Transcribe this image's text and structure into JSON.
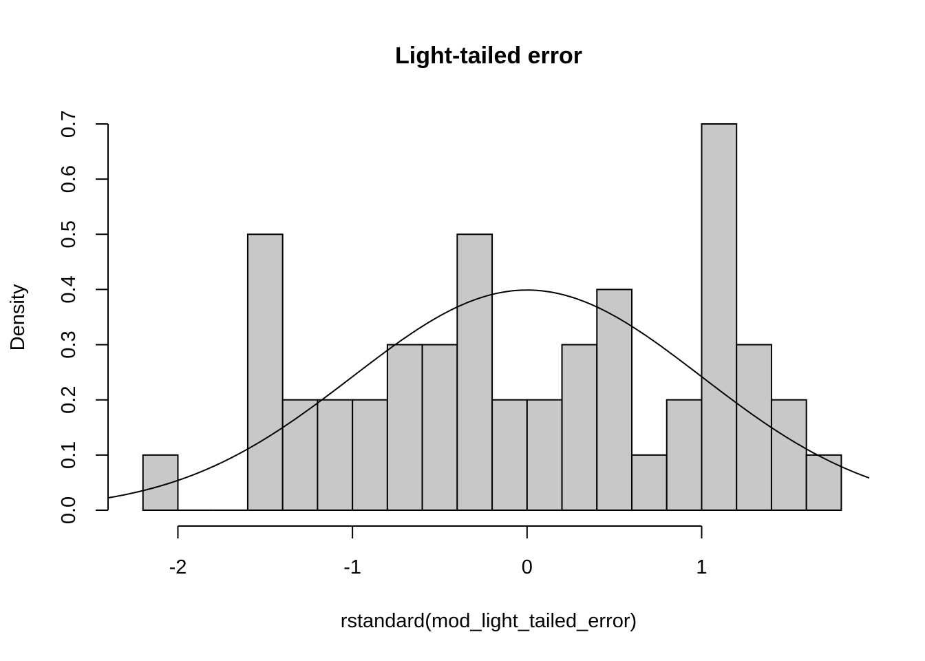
{
  "chart_data": {
    "type": "bar",
    "title": "Light-tailed error",
    "xlabel": "rstandard(mod_light_tailed_error)",
    "ylabel": "Density",
    "bins": [
      {
        "x0": -2.2,
        "x1": -2.0,
        "density": 0.1
      },
      {
        "x0": -2.0,
        "x1": -1.8,
        "density": 0.0
      },
      {
        "x0": -1.8,
        "x1": -1.6,
        "density": 0.0
      },
      {
        "x0": -1.6,
        "x1": -1.4,
        "density": 0.5
      },
      {
        "x0": -1.4,
        "x1": -1.2,
        "density": 0.2
      },
      {
        "x0": -1.2,
        "x1": -1.0,
        "density": 0.2
      },
      {
        "x0": -1.0,
        "x1": -0.8,
        "density": 0.2
      },
      {
        "x0": -0.8,
        "x1": -0.6,
        "density": 0.3
      },
      {
        "x0": -0.6,
        "x1": -0.4,
        "density": 0.3
      },
      {
        "x0": -0.4,
        "x1": -0.2,
        "density": 0.5
      },
      {
        "x0": -0.2,
        "x1": 0.0,
        "density": 0.2
      },
      {
        "x0": 0.0,
        "x1": 0.2,
        "density": 0.2
      },
      {
        "x0": 0.2,
        "x1": 0.4,
        "density": 0.3
      },
      {
        "x0": 0.4,
        "x1": 0.6,
        "density": 0.4
      },
      {
        "x0": 0.6,
        "x1": 0.8,
        "density": 0.1
      },
      {
        "x0": 0.8,
        "x1": 1.0,
        "density": 0.2
      },
      {
        "x0": 1.0,
        "x1": 1.2,
        "density": 0.7
      },
      {
        "x0": 1.2,
        "x1": 1.4,
        "density": 0.3
      },
      {
        "x0": 1.4,
        "x1": 1.6,
        "density": 0.2
      },
      {
        "x0": 1.6,
        "x1": 1.8,
        "density": 0.1
      }
    ],
    "overlay_curve": {
      "type": "normal_density",
      "mean": 0,
      "sd": 1,
      "x_range": [
        -2.4,
        1.96
      ]
    },
    "xlim": [
      -2.4,
      1.96
    ],
    "ylim": [
      0,
      0.7
    ],
    "x_ticks": [
      -2,
      -1,
      0,
      1
    ],
    "x_tick_labels": [
      "-2",
      "-1",
      "0",
      "1"
    ],
    "y_ticks": [
      0,
      0.1,
      0.2,
      0.3,
      0.4,
      0.5,
      0.6,
      0.7
    ],
    "y_tick_labels": [
      "0.0",
      "0.1",
      "0.2",
      "0.3",
      "0.4",
      "0.5",
      "0.6",
      "0.7"
    ],
    "grid": false,
    "legend": "none",
    "colors": {
      "bar_fill": "#c8c8c8",
      "bar_stroke": "#000000",
      "curve": "#000000",
      "axis": "#000000"
    }
  }
}
